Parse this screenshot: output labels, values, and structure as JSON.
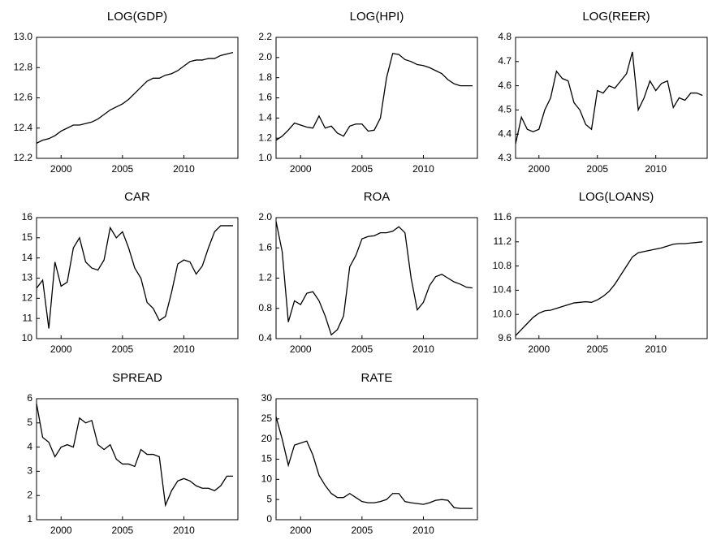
{
  "chart_data": [
    {
      "type": "line",
      "title": "LOG(GDP)",
      "color": "#000000",
      "x": [
        1998,
        1998.5,
        1999,
        1999.5,
        2000,
        2000.5,
        2001,
        2001.5,
        2002,
        2002.5,
        2003,
        2003.5,
        2004,
        2004.5,
        2005,
        2005.5,
        2006,
        2006.5,
        2007,
        2007.5,
        2008,
        2008.5,
        2009,
        2009.5,
        2010,
        2010.5,
        2011,
        2011.5,
        2012,
        2012.5,
        2013,
        2013.5,
        2014
      ],
      "values": [
        12.3,
        12.32,
        12.33,
        12.35,
        12.38,
        12.4,
        12.42,
        12.42,
        12.43,
        12.44,
        12.46,
        12.49,
        12.52,
        12.54,
        12.56,
        12.59,
        12.63,
        12.67,
        12.71,
        12.73,
        12.73,
        12.75,
        12.76,
        12.78,
        12.81,
        12.84,
        12.85,
        12.85,
        12.86,
        12.86,
        12.88,
        12.89,
        12.9
      ],
      "xlim": [
        1998,
        2014.4
      ],
      "xticks": [
        2000,
        2005,
        2010
      ],
      "ylim": [
        12.2,
        13.0
      ],
      "yticks": [
        12.2,
        12.4,
        12.6,
        12.8,
        {
          "value": 13.0,
          "label": "13.0"
        }
      ]
    },
    {
      "type": "line",
      "title": "LOG(HPI)",
      "color": "#000000",
      "x": [
        1998,
        1998.5,
        1999,
        1999.5,
        2000,
        2000.5,
        2001,
        2001.5,
        2002,
        2002.5,
        2003,
        2003.5,
        2004,
        2004.5,
        2005,
        2005.5,
        2006,
        2006.5,
        2007,
        2007.5,
        2008,
        2008.5,
        2009,
        2009.5,
        2010,
        2010.5,
        2011,
        2011.5,
        2012,
        2012.5,
        2013,
        2013.5,
        2014
      ],
      "values": [
        1.18,
        1.22,
        1.28,
        1.35,
        1.33,
        1.31,
        1.3,
        1.42,
        1.3,
        1.32,
        1.25,
        1.22,
        1.32,
        1.34,
        1.34,
        1.27,
        1.28,
        1.4,
        1.8,
        2.04,
        2.03,
        1.98,
        1.96,
        1.93,
        1.92,
        1.9,
        1.87,
        1.84,
        1.78,
        1.74,
        1.72,
        1.72,
        1.72
      ],
      "xlim": [
        1998,
        2014.4
      ],
      "xticks": [
        2000,
        2005,
        2010
      ],
      "ylim": [
        1.0,
        2.2
      ],
      "yticks": [
        {
          "value": 1.0,
          "label": "1.0"
        },
        1.2,
        1.4,
        1.6,
        1.8,
        {
          "value": 2.0,
          "label": "2.0"
        },
        2.2
      ]
    },
    {
      "type": "line",
      "title": "LOG(REER)",
      "color": "#000000",
      "x": [
        1998,
        1998.5,
        1999,
        1999.5,
        2000,
        2000.5,
        2001,
        2001.5,
        2002,
        2002.5,
        2003,
        2003.5,
        2004,
        2004.5,
        2005,
        2005.5,
        2006,
        2006.5,
        2007,
        2007.5,
        2008,
        2008.5,
        2009,
        2009.5,
        2010,
        2010.5,
        2011,
        2011.5,
        2012,
        2012.5,
        2013,
        2013.5,
        2014
      ],
      "values": [
        4.36,
        4.47,
        4.42,
        4.41,
        4.42,
        4.5,
        4.55,
        4.66,
        4.63,
        4.62,
        4.53,
        4.5,
        4.44,
        4.42,
        4.58,
        4.57,
        4.6,
        4.59,
        4.62,
        4.65,
        4.74,
        4.5,
        4.55,
        4.62,
        4.58,
        4.61,
        4.62,
        4.51,
        4.55,
        4.54,
        4.57,
        4.57,
        4.56
      ],
      "xlim": [
        1998,
        2014.4
      ],
      "xticks": [
        2000,
        2005,
        2010
      ],
      "ylim": [
        4.3,
        4.8
      ],
      "yticks": [
        4.3,
        4.4,
        4.5,
        4.6,
        4.7,
        4.8
      ]
    },
    {
      "type": "line",
      "title": "CAR",
      "color": "#000000",
      "x": [
        1998,
        1998.5,
        1999,
        1999.5,
        2000,
        2000.5,
        2001,
        2001.5,
        2002,
        2002.5,
        2003,
        2003.5,
        2004,
        2004.5,
        2005,
        2005.5,
        2006,
        2006.5,
        2007,
        2007.5,
        2008,
        2008.5,
        2009,
        2009.5,
        2010,
        2010.5,
        2011,
        2011.5,
        2012,
        2012.5,
        2013,
        2013.5,
        2014
      ],
      "values": [
        12.5,
        12.9,
        10.5,
        13.8,
        12.6,
        12.8,
        14.5,
        15.0,
        13.8,
        13.5,
        13.4,
        13.9,
        15.5,
        15.0,
        15.3,
        14.5,
        13.5,
        13.0,
        11.8,
        11.5,
        10.9,
        11.1,
        12.3,
        13.7,
        13.9,
        13.8,
        13.2,
        13.6,
        14.5,
        15.3,
        15.6,
        15.6,
        15.6
      ],
      "xlim": [
        1998,
        2014.4
      ],
      "xticks": [
        2000,
        2005,
        2010
      ],
      "ylim": [
        10,
        16
      ],
      "yticks": [
        10,
        11,
        12,
        13,
        14,
        15,
        16
      ]
    },
    {
      "type": "line",
      "title": "ROA",
      "color": "#000000",
      "x": [
        1998,
        1998.5,
        1999,
        1999.5,
        2000,
        2000.5,
        2001,
        2001.5,
        2002,
        2002.5,
        2003,
        2003.5,
        2004,
        2004.5,
        2005,
        2005.5,
        2006,
        2006.5,
        2007,
        2007.5,
        2008,
        2008.5,
        2009,
        2009.5,
        2010,
        2010.5,
        2011,
        2011.5,
        2012,
        2012.5,
        2013,
        2013.5,
        2014
      ],
      "values": [
        1.95,
        1.55,
        0.62,
        0.9,
        0.85,
        1.0,
        1.02,
        0.9,
        0.7,
        0.45,
        0.52,
        0.7,
        1.35,
        1.5,
        1.72,
        1.75,
        1.76,
        1.8,
        1.8,
        1.82,
        1.88,
        1.8,
        1.2,
        0.78,
        0.88,
        1.1,
        1.22,
        1.25,
        1.2,
        1.15,
        1.12,
        1.08,
        1.07
      ],
      "xlim": [
        1998,
        2014.4
      ],
      "xticks": [
        2000,
        2005,
        2010
      ],
      "ylim": [
        0.4,
        2.0
      ],
      "yticks": [
        0.4,
        0.8,
        1.2,
        1.6,
        {
          "value": 2.0,
          "label": "2.0"
        }
      ]
    },
    {
      "type": "line",
      "title": "LOG(LOANS)",
      "color": "#000000",
      "x": [
        1998,
        1998.5,
        1999,
        1999.5,
        2000,
        2000.5,
        2001,
        2001.5,
        2002,
        2002.5,
        2003,
        2003.5,
        2004,
        2004.5,
        2005,
        2005.5,
        2006,
        2006.5,
        2007,
        2007.5,
        2008,
        2008.5,
        2009,
        2009.5,
        2010,
        2010.5,
        2011,
        2011.5,
        2012,
        2012.5,
        2013,
        2013.5,
        2014
      ],
      "values": [
        9.65,
        9.75,
        9.85,
        9.95,
        10.02,
        10.06,
        10.07,
        10.1,
        10.13,
        10.16,
        10.19,
        10.2,
        10.21,
        10.2,
        10.24,
        10.3,
        10.38,
        10.5,
        10.65,
        10.8,
        10.95,
        11.02,
        11.04,
        11.06,
        11.08,
        11.1,
        11.13,
        11.16,
        11.17,
        11.17,
        11.18,
        11.19,
        11.2
      ],
      "xlim": [
        1998,
        2014.4
      ],
      "xticks": [
        2000,
        2005,
        2010
      ],
      "ylim": [
        9.6,
        11.6
      ],
      "yticks": [
        9.6,
        {
          "value": 10.0,
          "label": "10.0"
        },
        10.4,
        10.8,
        11.2,
        11.6
      ]
    },
    {
      "type": "line",
      "title": "SPREAD",
      "color": "#000000",
      "x": [
        1998,
        1998.5,
        1999,
        1999.5,
        2000,
        2000.5,
        2001,
        2001.5,
        2002,
        2002.5,
        2003,
        2003.5,
        2004,
        2004.5,
        2005,
        2005.5,
        2006,
        2006.5,
        2007,
        2007.5,
        2008,
        2008.5,
        2009,
        2009.5,
        2010,
        2010.5,
        2011,
        2011.5,
        2012,
        2012.5,
        2013,
        2013.5,
        2014
      ],
      "values": [
        5.8,
        4.4,
        4.2,
        3.6,
        4.0,
        4.1,
        4.0,
        5.2,
        5.0,
        5.1,
        4.1,
        3.9,
        4.1,
        3.5,
        3.3,
        3.3,
        3.2,
        3.9,
        3.7,
        3.7,
        3.6,
        1.6,
        2.2,
        2.6,
        2.7,
        2.6,
        2.4,
        2.3,
        2.3,
        2.2,
        2.4,
        2.8,
        2.8
      ],
      "xlim": [
        1998,
        2014.4
      ],
      "xticks": [
        2000,
        2005,
        2010
      ],
      "ylim": [
        1,
        6
      ],
      "yticks": [
        1,
        2,
        3,
        4,
        5,
        6
      ]
    },
    {
      "type": "line",
      "title": "RATE",
      "color": "#000000",
      "x": [
        1998,
        1998.5,
        1999,
        1999.5,
        2000,
        2000.5,
        2001,
        2001.5,
        2002,
        2002.5,
        2003,
        2003.5,
        2004,
        2004.5,
        2005,
        2005.5,
        2006,
        2006.5,
        2007,
        2007.5,
        2008,
        2008.5,
        2009,
        2009.5,
        2010,
        2010.5,
        2011,
        2011.5,
        2012,
        2012.5,
        2013,
        2013.5,
        2014
      ],
      "values": [
        25.5,
        20,
        13.5,
        18.5,
        19.0,
        19.5,
        16,
        11,
        8.5,
        6.5,
        5.5,
        5.5,
        6.5,
        5.5,
        4.5,
        4.2,
        4.2,
        4.5,
        5.0,
        6.5,
        6.5,
        4.5,
        4.2,
        4.0,
        3.8,
        4.2,
        4.8,
        5.0,
        4.8,
        3.0,
        2.8,
        2.8,
        2.8
      ],
      "xlim": [
        1998,
        2014.4
      ],
      "xticks": [
        2000,
        2005,
        2010
      ],
      "ylim": [
        0,
        30
      ],
      "yticks": [
        0,
        5,
        10,
        15,
        20,
        25,
        30
      ]
    }
  ]
}
